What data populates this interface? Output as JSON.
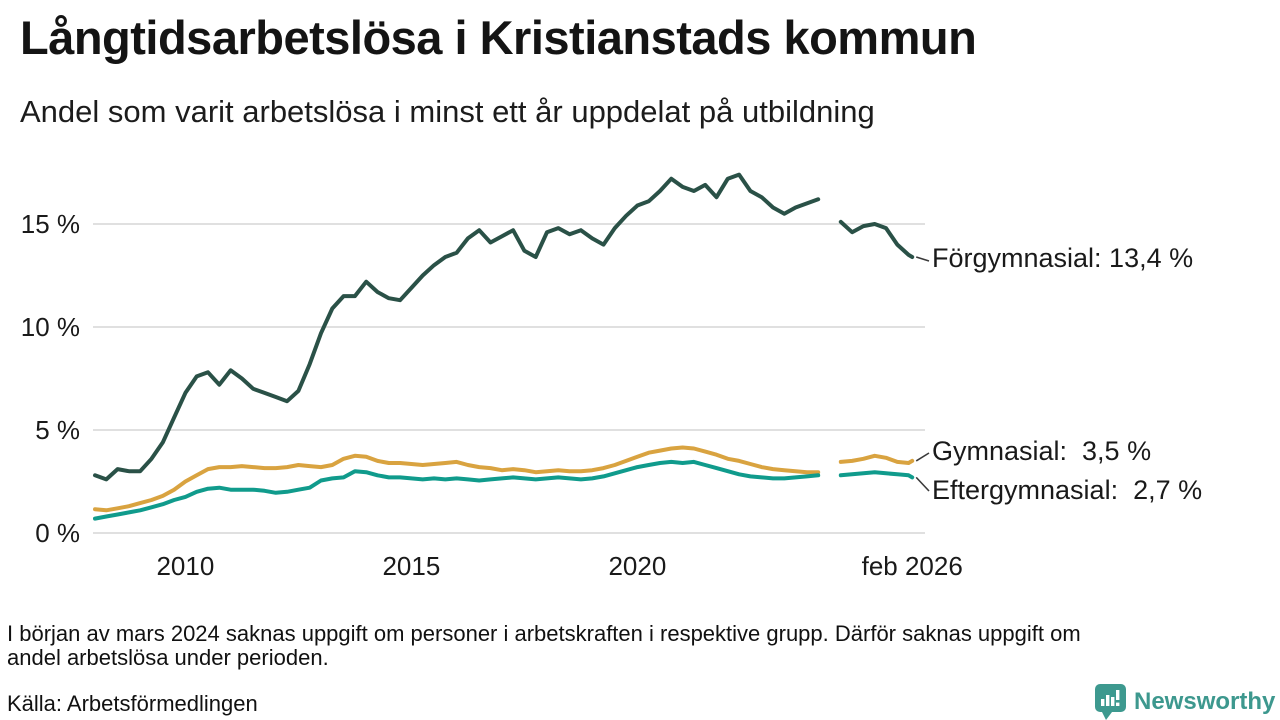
{
  "header": {
    "title": "Långtidsarbetslösa i Kristianstads kommun",
    "subtitle": "Andel som varit arbetslösa i minst ett år uppdelat på utbildning"
  },
  "chart_data": {
    "type": "line",
    "title": "Långtidsarbetslösa i Kristianstads kommun",
    "subtitle": "Andel som varit arbetslösa i minst ett år uppdelat på utbildning",
    "x_unit": "year (monthly series, jan 2008 – feb 2026)",
    "xlim": [
      2008,
      2026.4
    ],
    "ylim": [
      0,
      18
    ],
    "grid": "horizontal",
    "gap": "values missing around spring 2024 (see footnote)",
    "y_ticks": [
      {
        "value": 0,
        "label": "0 %"
      },
      {
        "value": 5,
        "label": "5 %"
      },
      {
        "value": 10,
        "label": "10 %"
      },
      {
        "value": 15,
        "label": "15 %"
      }
    ],
    "x_ticks": [
      {
        "year": 2010,
        "label": "2010"
      },
      {
        "year": 2015,
        "label": "2015"
      },
      {
        "year": 2020,
        "label": "2020"
      },
      {
        "year": 2026.08,
        "label": "feb 2026"
      }
    ],
    "series": [
      {
        "name": "Förgymnasial",
        "end_label": "Förgymnasial: 13,4 %",
        "end_value": 13.4,
        "color": "#2A5147",
        "points": [
          [
            2008,
            2.8
          ],
          [
            2008.25,
            2.6
          ],
          [
            2008.5,
            3.1
          ],
          [
            2008.75,
            3.0
          ],
          [
            2009,
            3.0
          ],
          [
            2009.25,
            3.6
          ],
          [
            2009.5,
            4.4
          ],
          [
            2009.75,
            5.6
          ],
          [
            2010,
            6.8
          ],
          [
            2010.25,
            7.6
          ],
          [
            2010.5,
            7.8
          ],
          [
            2010.75,
            7.2
          ],
          [
            2011,
            7.9
          ],
          [
            2011.25,
            7.5
          ],
          [
            2011.5,
            7.0
          ],
          [
            2011.75,
            6.8
          ],
          [
            2012,
            6.6
          ],
          [
            2012.25,
            6.4
          ],
          [
            2012.5,
            6.9
          ],
          [
            2012.75,
            8.2
          ],
          [
            2013,
            9.7
          ],
          [
            2013.25,
            10.9
          ],
          [
            2013.5,
            11.5
          ],
          [
            2013.75,
            11.5
          ],
          [
            2014,
            12.2
          ],
          [
            2014.25,
            11.7
          ],
          [
            2014.5,
            11.4
          ],
          [
            2014.75,
            11.3
          ],
          [
            2015,
            11.9
          ],
          [
            2015.25,
            12.5
          ],
          [
            2015.5,
            13.0
          ],
          [
            2015.75,
            13.4
          ],
          [
            2016,
            13.6
          ],
          [
            2016.25,
            14.3
          ],
          [
            2016.5,
            14.7
          ],
          [
            2016.75,
            14.1
          ],
          [
            2017,
            14.4
          ],
          [
            2017.25,
            14.7
          ],
          [
            2017.5,
            13.7
          ],
          [
            2017.75,
            13.4
          ],
          [
            2018,
            14.6
          ],
          [
            2018.25,
            14.8
          ],
          [
            2018.5,
            14.5
          ],
          [
            2018.75,
            14.7
          ],
          [
            2019,
            14.3
          ],
          [
            2019.25,
            14.0
          ],
          [
            2019.5,
            14.8
          ],
          [
            2019.75,
            15.4
          ],
          [
            2020,
            15.9
          ],
          [
            2020.25,
            16.1
          ],
          [
            2020.5,
            16.6
          ],
          [
            2020.75,
            17.2
          ],
          [
            2021,
            16.8
          ],
          [
            2021.25,
            16.6
          ],
          [
            2021.5,
            16.9
          ],
          [
            2021.75,
            16.3
          ],
          [
            2022,
            17.2
          ],
          [
            2022.25,
            17.4
          ],
          [
            2022.5,
            16.6
          ],
          [
            2022.75,
            16.3
          ],
          [
            2023,
            15.8
          ],
          [
            2023.25,
            15.5
          ],
          [
            2023.5,
            15.8
          ],
          [
            2023.75,
            16.0
          ],
          [
            2024,
            16.2
          ],
          [
            2024.25,
            null
          ],
          [
            2024.5,
            15.1
          ],
          [
            2024.75,
            14.6
          ],
          [
            2025,
            14.9
          ],
          [
            2025.25,
            15.0
          ],
          [
            2025.5,
            14.8
          ],
          [
            2025.75,
            14.0
          ],
          [
            2026,
            13.5
          ],
          [
            2026.08,
            13.4
          ]
        ]
      },
      {
        "name": "Gymnasial",
        "end_label": "Gymnasial:  3,5 %",
        "end_value": 3.5,
        "color": "#D9A340",
        "points": [
          [
            2008,
            1.15
          ],
          [
            2008.25,
            1.1
          ],
          [
            2008.5,
            1.2
          ],
          [
            2008.75,
            1.3
          ],
          [
            2009,
            1.45
          ],
          [
            2009.25,
            1.6
          ],
          [
            2009.5,
            1.8
          ],
          [
            2009.75,
            2.1
          ],
          [
            2010,
            2.5
          ],
          [
            2010.25,
            2.8
          ],
          [
            2010.5,
            3.1
          ],
          [
            2010.75,
            3.2
          ],
          [
            2011,
            3.2
          ],
          [
            2011.25,
            3.25
          ],
          [
            2011.5,
            3.2
          ],
          [
            2011.75,
            3.15
          ],
          [
            2012,
            3.15
          ],
          [
            2012.25,
            3.2
          ],
          [
            2012.5,
            3.3
          ],
          [
            2012.75,
            3.25
          ],
          [
            2013,
            3.2
          ],
          [
            2013.25,
            3.3
          ],
          [
            2013.5,
            3.6
          ],
          [
            2013.75,
            3.75
          ],
          [
            2014,
            3.7
          ],
          [
            2014.25,
            3.5
          ],
          [
            2014.5,
            3.4
          ],
          [
            2014.75,
            3.4
          ],
          [
            2015,
            3.35
          ],
          [
            2015.25,
            3.3
          ],
          [
            2015.5,
            3.35
          ],
          [
            2015.75,
            3.4
          ],
          [
            2016,
            3.45
          ],
          [
            2016.25,
            3.3
          ],
          [
            2016.5,
            3.2
          ],
          [
            2016.75,
            3.15
          ],
          [
            2017,
            3.05
          ],
          [
            2017.25,
            3.1
          ],
          [
            2017.5,
            3.05
          ],
          [
            2017.75,
            2.95
          ],
          [
            2018,
            3.0
          ],
          [
            2018.25,
            3.05
          ],
          [
            2018.5,
            3.0
          ],
          [
            2018.75,
            3.0
          ],
          [
            2019,
            3.05
          ],
          [
            2019.25,
            3.15
          ],
          [
            2019.5,
            3.3
          ],
          [
            2019.75,
            3.5
          ],
          [
            2020,
            3.7
          ],
          [
            2020.25,
            3.9
          ],
          [
            2020.5,
            4.0
          ],
          [
            2020.75,
            4.1
          ],
          [
            2021,
            4.15
          ],
          [
            2021.25,
            4.1
          ],
          [
            2021.5,
            3.95
          ],
          [
            2021.75,
            3.8
          ],
          [
            2022,
            3.6
          ],
          [
            2022.25,
            3.5
          ],
          [
            2022.5,
            3.35
          ],
          [
            2022.75,
            3.2
          ],
          [
            2023,
            3.1
          ],
          [
            2023.25,
            3.05
          ],
          [
            2023.5,
            3.0
          ],
          [
            2023.75,
            2.95
          ],
          [
            2024,
            2.95
          ],
          [
            2024.25,
            null
          ],
          [
            2024.5,
            3.45
          ],
          [
            2024.75,
            3.5
          ],
          [
            2025,
            3.6
          ],
          [
            2025.25,
            3.75
          ],
          [
            2025.5,
            3.65
          ],
          [
            2025.75,
            3.45
          ],
          [
            2026,
            3.4
          ],
          [
            2026.08,
            3.5
          ]
        ]
      },
      {
        "name": "Eftergymnasial",
        "end_label": "Eftergymnasial:  2,7 %",
        "end_value": 2.7,
        "color": "#109B8C",
        "points": [
          [
            2008,
            0.7
          ],
          [
            2008.25,
            0.8
          ],
          [
            2008.5,
            0.9
          ],
          [
            2008.75,
            1.0
          ],
          [
            2009,
            1.1
          ],
          [
            2009.25,
            1.25
          ],
          [
            2009.5,
            1.4
          ],
          [
            2009.75,
            1.6
          ],
          [
            2010,
            1.75
          ],
          [
            2010.25,
            2.0
          ],
          [
            2010.5,
            2.15
          ],
          [
            2010.75,
            2.2
          ],
          [
            2011,
            2.1
          ],
          [
            2011.25,
            2.1
          ],
          [
            2011.5,
            2.1
          ],
          [
            2011.75,
            2.05
          ],
          [
            2012,
            1.95
          ],
          [
            2012.25,
            2.0
          ],
          [
            2012.5,
            2.1
          ],
          [
            2012.75,
            2.2
          ],
          [
            2013,
            2.55
          ],
          [
            2013.25,
            2.65
          ],
          [
            2013.5,
            2.7
          ],
          [
            2013.75,
            3.0
          ],
          [
            2014,
            2.95
          ],
          [
            2014.25,
            2.8
          ],
          [
            2014.5,
            2.7
          ],
          [
            2014.75,
            2.7
          ],
          [
            2015,
            2.65
          ],
          [
            2015.25,
            2.6
          ],
          [
            2015.5,
            2.65
          ],
          [
            2015.75,
            2.6
          ],
          [
            2016,
            2.65
          ],
          [
            2016.25,
            2.6
          ],
          [
            2016.5,
            2.55
          ],
          [
            2016.75,
            2.6
          ],
          [
            2017,
            2.65
          ],
          [
            2017.25,
            2.7
          ],
          [
            2017.5,
            2.65
          ],
          [
            2017.75,
            2.6
          ],
          [
            2018,
            2.65
          ],
          [
            2018.25,
            2.7
          ],
          [
            2018.5,
            2.65
          ],
          [
            2018.75,
            2.6
          ],
          [
            2019,
            2.65
          ],
          [
            2019.25,
            2.75
          ],
          [
            2019.5,
            2.9
          ],
          [
            2019.75,
            3.05
          ],
          [
            2020,
            3.2
          ],
          [
            2020.25,
            3.3
          ],
          [
            2020.5,
            3.4
          ],
          [
            2020.75,
            3.45
          ],
          [
            2021,
            3.4
          ],
          [
            2021.25,
            3.45
          ],
          [
            2021.5,
            3.3
          ],
          [
            2021.75,
            3.15
          ],
          [
            2022,
            3.0
          ],
          [
            2022.25,
            2.85
          ],
          [
            2022.5,
            2.75
          ],
          [
            2022.75,
            2.7
          ],
          [
            2023,
            2.65
          ],
          [
            2023.25,
            2.65
          ],
          [
            2023.5,
            2.7
          ],
          [
            2023.75,
            2.75
          ],
          [
            2024,
            2.8
          ],
          [
            2024.25,
            null
          ],
          [
            2024.5,
            2.8
          ],
          [
            2024.75,
            2.85
          ],
          [
            2025,
            2.9
          ],
          [
            2025.25,
            2.95
          ],
          [
            2025.5,
            2.9
          ],
          [
            2025.75,
            2.85
          ],
          [
            2026,
            2.8
          ],
          [
            2026.08,
            2.7
          ]
        ]
      }
    ]
  },
  "footer": {
    "note": "I början av mars 2024 saknas uppgift om personer i arbetskraften i respektive grupp. Därför saknas uppgift om\nandel arbetslösa under perioden.",
    "source": "Källa: Arbetsförmedlingen"
  },
  "branding": {
    "wordmark": "Newsworthy",
    "color": "#3D988E"
  }
}
